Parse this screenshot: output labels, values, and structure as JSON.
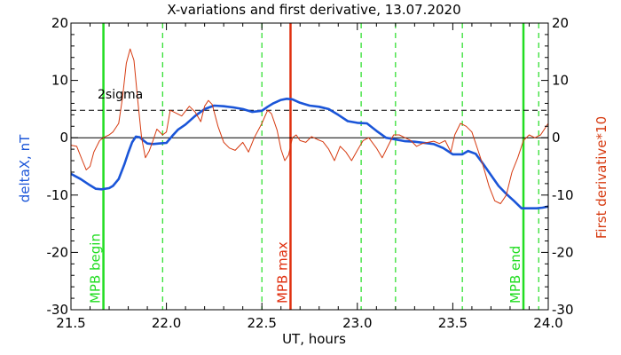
{
  "chart_data": {
    "type": "line",
    "title": "X-variations and first derivative, 13.07.2020",
    "xlabel": "UT, hours",
    "ylabel_left": "deltaX, nT",
    "ylabel_right": "First derivative*10",
    "xlim": [
      21.5,
      24.0
    ],
    "ylim_left": [
      -30,
      20
    ],
    "ylim_right": [
      -30,
      20
    ],
    "x_ticks": [
      "21.5",
      "22.0",
      "22.5",
      "23.0",
      "23.5",
      "24.0"
    ],
    "x_tick_values": [
      21.5,
      22.0,
      22.5,
      23.0,
      23.5,
      24.0
    ],
    "y_ticks": [
      "20",
      "10",
      "0",
      "-10",
      "-20",
      "-30"
    ],
    "y_tick_values": [
      20,
      10,
      0,
      -10,
      -20,
      -30
    ],
    "grid": false,
    "colors": {
      "deltaX": "#1a55d8",
      "derivative": "#d63a10",
      "mpb_edges": "#22dd22",
      "mpb_max": "#e03010",
      "dashed_markers": "#22dd22",
      "reference": "#000000"
    },
    "series": [
      {
        "key": "deltaX",
        "axis": "left",
        "x": [
          21.5,
          21.55,
          21.6,
          21.63,
          21.66,
          21.7,
          21.72,
          21.75,
          21.78,
          21.8,
          21.82,
          21.84,
          21.86,
          21.88,
          21.9,
          21.93,
          21.96,
          22.0,
          22.03,
          22.06,
          22.1,
          22.15,
          22.2,
          22.25,
          22.3,
          22.35,
          22.4,
          22.45,
          22.5,
          22.53,
          22.56,
          22.6,
          22.63,
          22.66,
          22.7,
          22.75,
          22.8,
          22.85,
          22.9,
          22.95,
          23.0,
          23.05,
          23.1,
          23.15,
          23.2,
          23.25,
          23.3,
          23.35,
          23.4,
          23.45,
          23.5,
          23.55,
          23.58,
          23.62,
          23.66,
          23.7,
          23.74,
          23.78,
          23.82,
          23.86,
          23.9,
          23.94,
          23.97,
          24.0
        ],
        "y": [
          -6.3,
          -7.2,
          -8.3,
          -8.9,
          -9.0,
          -8.8,
          -8.4,
          -7.2,
          -4.6,
          -2.6,
          -0.8,
          0.2,
          0.1,
          -0.5,
          -1.0,
          -1.1,
          -1.0,
          -0.9,
          0.3,
          1.4,
          2.3,
          3.8,
          5.0,
          5.6,
          5.5,
          5.3,
          5.0,
          4.5,
          4.7,
          5.4,
          6.0,
          6.6,
          6.8,
          6.7,
          6.1,
          5.6,
          5.4,
          5.0,
          4.0,
          2.9,
          2.6,
          2.5,
          1.2,
          0.0,
          -0.3,
          -0.6,
          -0.7,
          -0.9,
          -1.1,
          -1.8,
          -2.9,
          -2.9,
          -2.3,
          -2.8,
          -4.6,
          -6.5,
          -8.4,
          -9.8,
          -11.0,
          -12.3,
          -12.3,
          -12.3,
          -12.2,
          -12.0
        ]
      },
      {
        "key": "derivative",
        "axis": "right",
        "x": [
          21.5,
          21.53,
          21.56,
          21.58,
          21.6,
          21.62,
          21.65,
          21.68,
          21.7,
          21.72,
          21.75,
          21.77,
          21.79,
          21.81,
          21.83,
          21.85,
          21.87,
          21.89,
          21.91,
          21.93,
          21.95,
          21.98,
          22.0,
          22.02,
          22.05,
          22.08,
          22.12,
          22.15,
          22.18,
          22.2,
          22.22,
          22.24,
          22.27,
          22.3,
          22.33,
          22.36,
          22.4,
          22.43,
          22.46,
          22.5,
          22.53,
          22.55,
          22.58,
          22.6,
          22.62,
          22.64,
          22.66,
          22.68,
          22.7,
          22.73,
          22.76,
          22.79,
          22.82,
          22.85,
          22.88,
          22.91,
          22.94,
          22.97,
          23.0,
          23.03,
          23.06,
          23.1,
          23.13,
          23.16,
          23.19,
          23.22,
          23.25,
          23.28,
          23.31,
          23.34,
          23.37,
          23.4,
          23.43,
          23.46,
          23.49,
          23.51,
          23.54,
          23.57,
          23.6,
          23.63,
          23.66,
          23.69,
          23.72,
          23.75,
          23.78,
          23.81,
          23.84,
          23.87,
          23.9,
          23.93,
          23.96,
          24.0
        ],
        "y": [
          -1.3,
          -1.5,
          -4.0,
          -5.6,
          -5.0,
          -2.5,
          -0.5,
          0.2,
          0.5,
          1.0,
          2.5,
          7.0,
          13.0,
          15.5,
          13.5,
          6.5,
          0.0,
          -3.5,
          -2.3,
          -0.5,
          1.5,
          0.5,
          1.0,
          4.8,
          4.3,
          3.8,
          5.5,
          4.5,
          2.8,
          5.5,
          6.5,
          5.8,
          2.0,
          -0.8,
          -1.8,
          -2.2,
          -0.8,
          -2.5,
          0.0,
          2.5,
          4.8,
          4.2,
          1.3,
          -2.0,
          -4.0,
          -3.0,
          0.0,
          0.5,
          -0.5,
          -0.8,
          0.2,
          -0.3,
          -0.7,
          -2.0,
          -4.0,
          -1.5,
          -2.5,
          -4.0,
          -2.2,
          -0.5,
          0.0,
          -1.8,
          -3.5,
          -1.5,
          0.5,
          0.5,
          0.0,
          -0.5,
          -1.5,
          -1.0,
          -0.8,
          -0.6,
          -1.0,
          -0.5,
          -2.5,
          0.5,
          2.5,
          2.0,
          1.0,
          -2.0,
          -5.0,
          -8.5,
          -11.0,
          -11.5,
          -10.0,
          -6.0,
          -3.5,
          -0.5,
          0.5,
          0.0,
          0.5,
          2.5
        ]
      }
    ],
    "reference_lines": {
      "zero": 0,
      "two_sigma": 4.8,
      "two_sigma_label": "2sigma"
    },
    "vertical_markers": [
      {
        "x": 21.67,
        "style": "solid",
        "color_key": "mpb_edges",
        "label": "MPB begin"
      },
      {
        "x": 22.65,
        "style": "solid",
        "color_key": "mpb_max",
        "label": "MPB max"
      },
      {
        "x": 23.87,
        "style": "solid",
        "color_key": "mpb_edges",
        "label": "MPB end"
      },
      {
        "x": 21.98,
        "style": "dashed",
        "color_key": "dashed_markers"
      },
      {
        "x": 22.5,
        "style": "dashed",
        "color_key": "dashed_markers"
      },
      {
        "x": 23.02,
        "style": "dashed",
        "color_key": "dashed_markers"
      },
      {
        "x": 23.2,
        "style": "dashed",
        "color_key": "dashed_markers"
      },
      {
        "x": 23.55,
        "style": "dashed",
        "color_key": "dashed_markers"
      },
      {
        "x": 23.95,
        "style": "dashed",
        "color_key": "dashed_markers"
      }
    ]
  }
}
